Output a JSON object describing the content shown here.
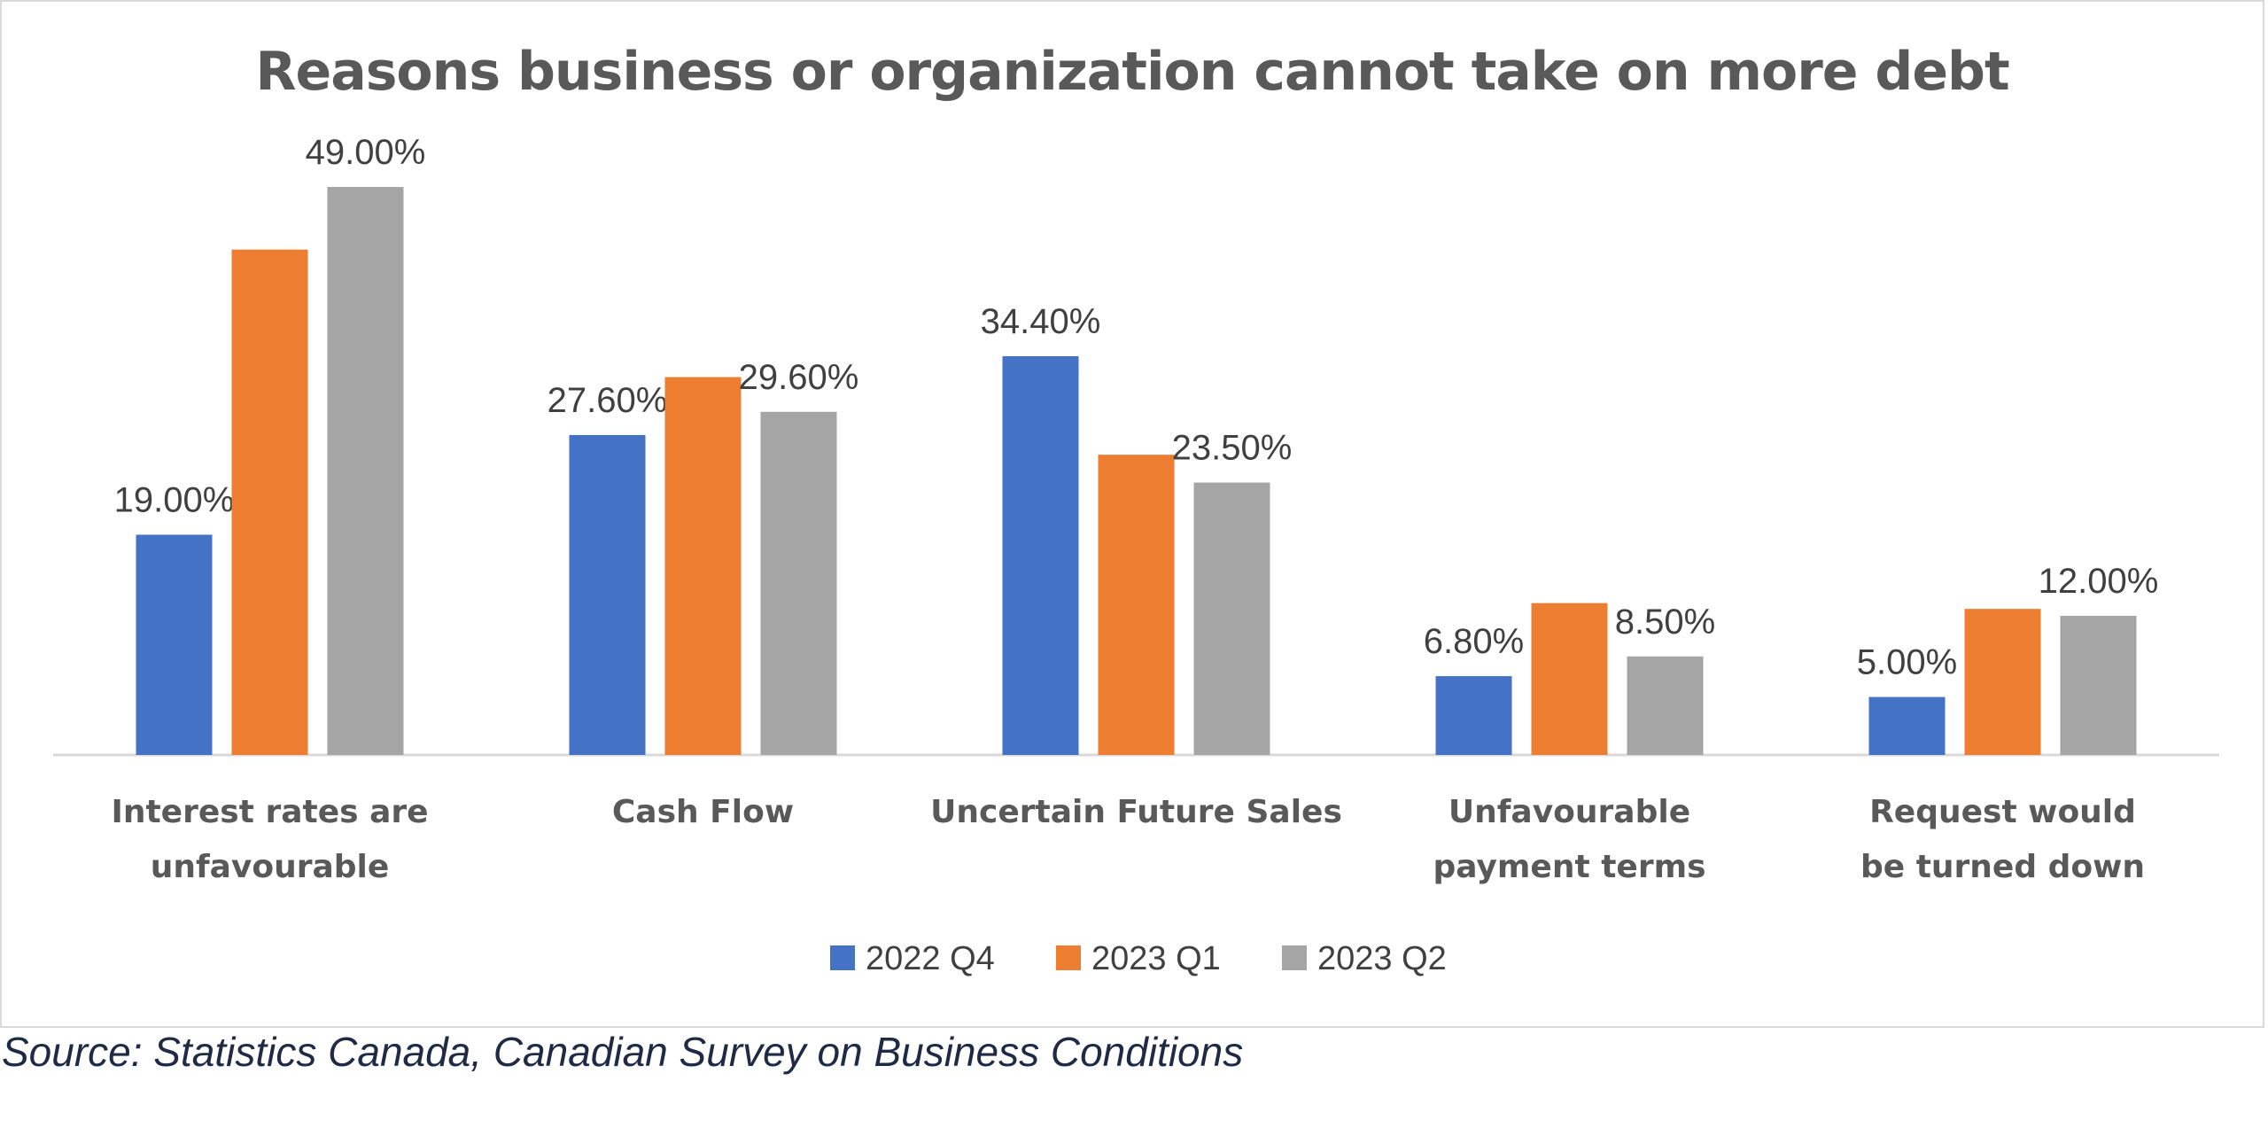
{
  "title": "Reasons business or organization cannot take on more debt",
  "source": "Source: Statistics Canada, Canadian Survey on Business Conditions",
  "chart_data": {
    "type": "bar",
    "title": "Reasons business or organization cannot take on more debt",
    "categories": [
      [
        "Interest rates are",
        "unfavourable"
      ],
      [
        "Cash Flow"
      ],
      [
        "Uncertain Future Sales"
      ],
      [
        "Unfavourable",
        "payment terms"
      ],
      [
        "Request would",
        "be turned down"
      ]
    ],
    "series": [
      {
        "name": "2022 Q4",
        "color": "#4472c4",
        "values": [
          19.0,
          27.6,
          34.4,
          6.8,
          5.0
        ],
        "labels": [
          "19.00%",
          "27.60%",
          "34.40%",
          "6.80%",
          "5.00%"
        ]
      },
      {
        "name": "2023 Q1",
        "color": "#ed7d31",
        "values": [
          43.6,
          32.6,
          25.9,
          13.1,
          12.6
        ],
        "labels": [
          "",
          "",
          "",
          "",
          ""
        ]
      },
      {
        "name": "2023 Q2",
        "color": "#a5a5a5",
        "values": [
          49.0,
          29.6,
          23.5,
          8.5,
          12.0
        ],
        "labels": [
          "49.00%",
          "29.60%",
          "23.50%",
          "8.50%",
          "12.00%"
        ]
      }
    ],
    "ylim": [
      0,
      50
    ],
    "grid": false,
    "legend": "bottom"
  }
}
